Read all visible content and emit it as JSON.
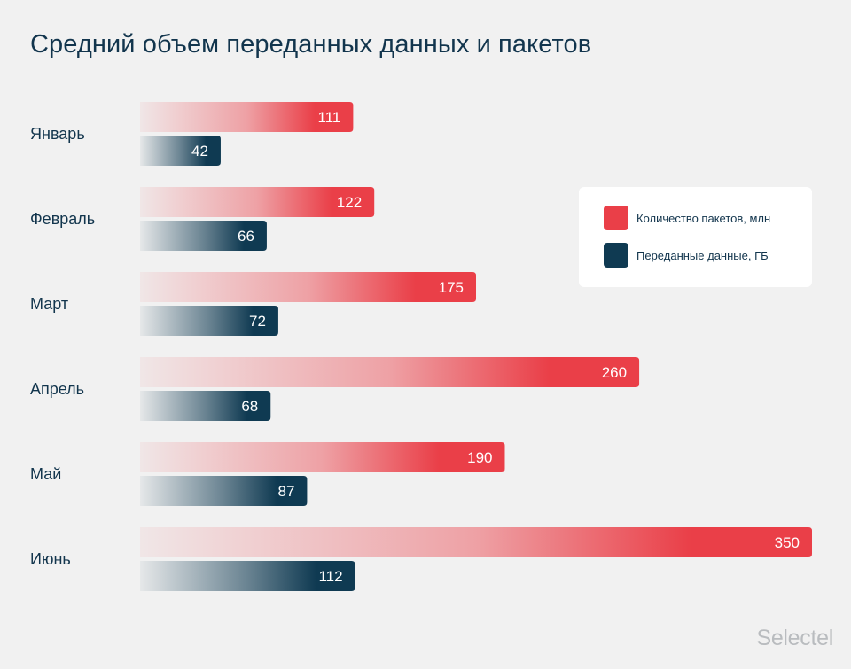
{
  "title": "Средний объем переданных данных и пакетов",
  "brand": "Selectel",
  "legend": {
    "items": [
      {
        "label": "Количество пакетов, млн",
        "color": "#ea3f48"
      },
      {
        "label": "Переданные данные, ГБ",
        "color": "#0f3a52"
      }
    ]
  },
  "chart_data": {
    "type": "bar",
    "orientation": "horizontal",
    "categories": [
      "Январь",
      "Февраль",
      "Март",
      "Апрель",
      "Май",
      "Июнь"
    ],
    "series": [
      {
        "name": "Количество пакетов, млн",
        "color": "#ea3f48",
        "values": [
          111,
          122,
          175,
          260,
          190,
          350
        ]
      },
      {
        "name": "Переданные данные, ГБ",
        "color": "#0f3a52",
        "values": [
          42,
          66,
          72,
          68,
          87,
          112
        ]
      }
    ],
    "data_labels": true,
    "grid": false,
    "legend_position": "right"
  }
}
